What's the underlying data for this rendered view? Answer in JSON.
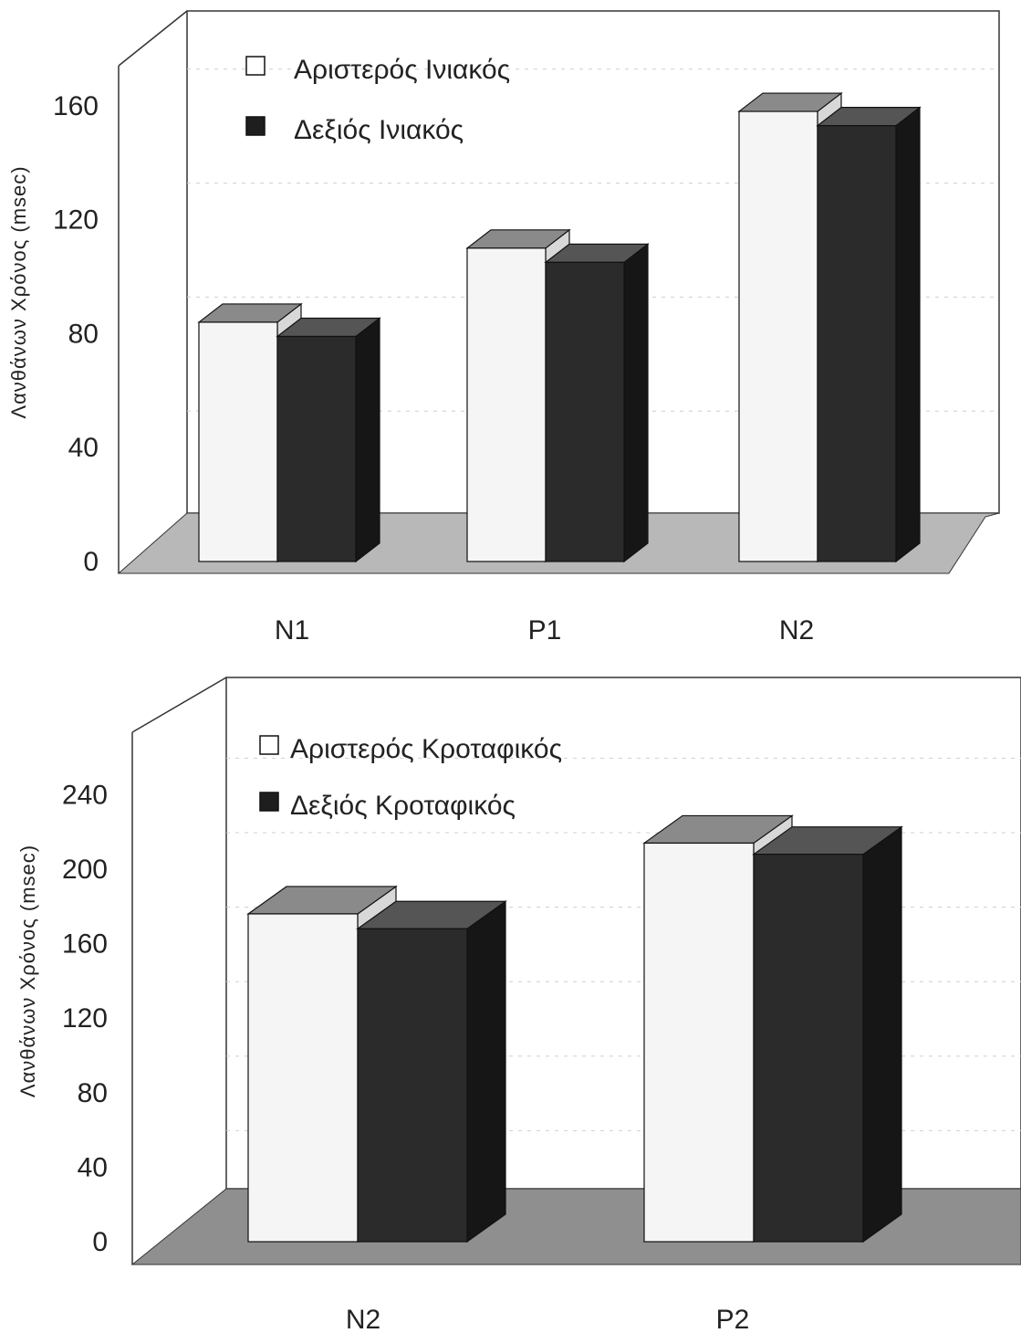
{
  "chart_data": [
    {
      "type": "bar",
      "categories": [
        "N1",
        "P1",
        "N2"
      ],
      "series": [
        {
          "name": "Αριστερός Ινιακός",
          "values": [
            84,
            110,
            158
          ]
        },
        {
          "name": "Δεξιός Ινιακός",
          "values": [
            79,
            105,
            153
          ]
        }
      ],
      "ylabel": "Λανθάνων Χρόνος (msec)",
      "xlabel": "",
      "yticks": [
        0,
        40,
        80,
        120,
        160
      ],
      "ylim": [
        0,
        180
      ],
      "legend": "top-left",
      "grid": true
    },
    {
      "type": "bar",
      "categories": [
        "N2",
        "P2"
      ],
      "series": [
        {
          "name": "Αριστερός Κροταφικός",
          "values": [
            176,
            214
          ]
        },
        {
          "name": "Δεξιός Κροταφικός",
          "values": [
            168,
            208
          ]
        }
      ],
      "ylabel": "Λανθάνων Χρόνος (msec)",
      "xlabel": "",
      "yticks": [
        0,
        40,
        80,
        120,
        160,
        200,
        240
      ],
      "ylim": [
        0,
        250
      ],
      "legend": "top-left",
      "grid": true
    }
  ],
  "colors": {
    "light_bar": "#f4f4f4",
    "dark_bar": "#2a2a2a",
    "floor": "#9a9a9a",
    "frame": "#333333"
  }
}
